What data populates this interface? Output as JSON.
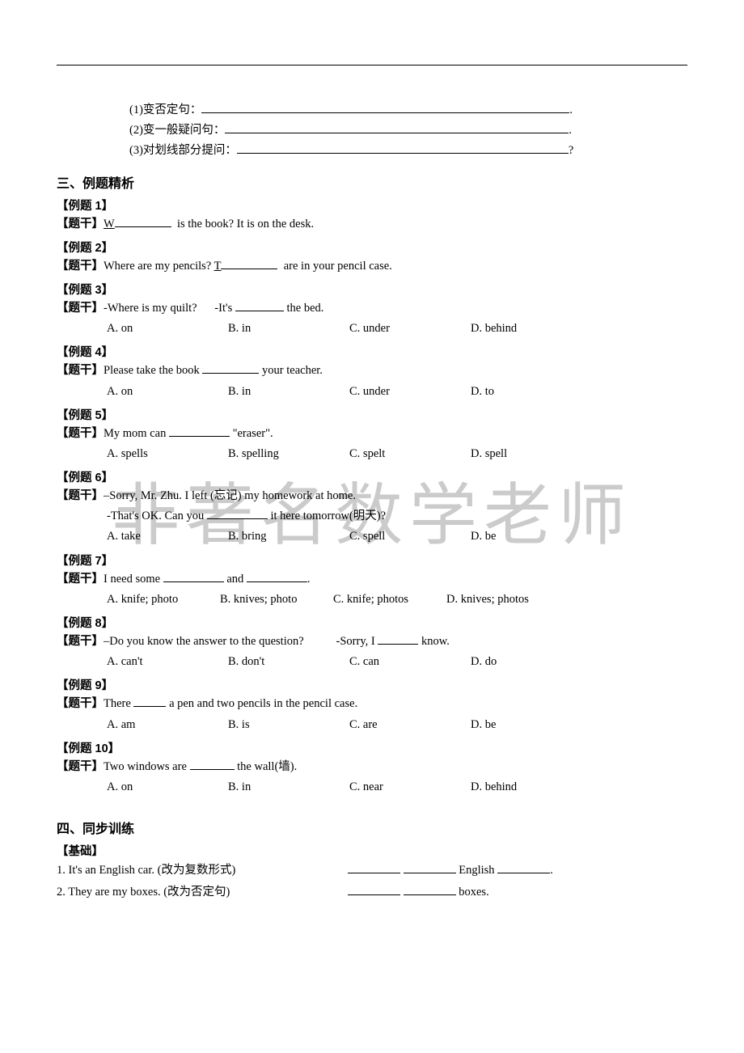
{
  "colors": {
    "text": "#000000",
    "bg": "#ffffff",
    "watermark": "#999999"
  },
  "watermark_text": "非著名数学老师",
  "top_exercises": {
    "line1": {
      "prefix": "(1)变否定句：",
      "terminator": "."
    },
    "line2": {
      "prefix": "(2)变一般疑问句：",
      "terminator": "."
    },
    "line3": {
      "prefix": "(3)对划线部分提问：",
      "terminator": "?"
    }
  },
  "section3_title": "三、例题精析",
  "examples": [
    {
      "label": "【例题 1】",
      "stem_prefix": "【题干】",
      "stem_html": [
        {
          "t": "u",
          "v": "W"
        },
        {
          "t": "blank",
          "w": 70
        },
        {
          "t": "txt",
          "v": "  is the book? It is on the desk."
        }
      ]
    },
    {
      "label": "【例题 2】",
      "stem_prefix": "【题干】",
      "stem_html": [
        {
          "t": "txt",
          "v": "Where are my pencils? "
        },
        {
          "t": "u",
          "v": "T"
        },
        {
          "t": "blank",
          "w": 70
        },
        {
          "t": "txt",
          "v": "  are in your pencil case."
        }
      ]
    },
    {
      "label": "【例题 3】",
      "stem_prefix": "【题干】",
      "stem_html": [
        {
          "t": "txt",
          "v": "-Where is my quilt?      -It's "
        },
        {
          "t": "blank",
          "w": 60
        },
        {
          "t": "txt",
          "v": " the bed."
        }
      ],
      "opts": [
        "A. on",
        "B. in",
        "C. under",
        "D. behind"
      ]
    },
    {
      "label": "【例题 4】",
      "stem_prefix": "【题干】",
      "stem_html": [
        {
          "t": "txt",
          "v": "Please take the book "
        },
        {
          "t": "blank",
          "w": 70
        },
        {
          "t": "txt",
          "v": " your teacher."
        }
      ],
      "opts": [
        "A. on",
        "B. in",
        "C. under",
        "D. to"
      ]
    },
    {
      "label": "【例题 5】",
      "stem_prefix": "【题干】",
      "stem_html": [
        {
          "t": "txt",
          "v": "My mom can "
        },
        {
          "t": "blank",
          "w": 75
        },
        {
          "t": "txt",
          "v": " \"eraser\"."
        }
      ],
      "opts": [
        "A. spells",
        "B. spelling",
        "C. spelt",
        "D. spell"
      ]
    },
    {
      "label": "【例题 6】",
      "stem_prefix": "【题干】",
      "stem_html": [
        {
          "t": "txt",
          "v": "–Sorry, Mr. Zhu. I left (忘记) my homework at home."
        }
      ],
      "stem2_html": [
        {
          "t": "txt",
          "v": "-That's OK. Can you "
        },
        {
          "t": "blank",
          "w": 75
        },
        {
          "t": "txt",
          "v": " it here tomorrow(明天)?"
        }
      ],
      "opts": [
        "A. take",
        "B. bring",
        "C. spell",
        "D. be"
      ]
    },
    {
      "label": "【例题 7】",
      "stem_prefix": "【题干】",
      "stem_html": [
        {
          "t": "txt",
          "v": "I need some "
        },
        {
          "t": "blank",
          "w": 75
        },
        {
          "t": "txt",
          "v": " and "
        },
        {
          "t": "blank",
          "w": 75
        },
        {
          "t": "txt",
          "v": "."
        }
      ],
      "opts": [
        "A. knife; photo",
        "B. knives; photo",
        "C. knife; photos",
        "D. knives; photos"
      ]
    },
    {
      "label": "【例题 8】",
      "stem_prefix": "【题干】",
      "stem_html": [
        {
          "t": "txt",
          "v": "–Do you know the answer to the question?           -Sorry, I "
        },
        {
          "t": "blank",
          "w": 50
        },
        {
          "t": "txt",
          "v": " know."
        }
      ],
      "opts": [
        "A. can't",
        "B. don't",
        "C. can",
        "D. do"
      ]
    },
    {
      "label": "【例题 9】",
      "stem_prefix": "【题干】",
      "stem_html": [
        {
          "t": "txt",
          "v": "There "
        },
        {
          "t": "blank",
          "w": 40
        },
        {
          "t": "txt",
          "v": " a pen and two pencils in the pencil case."
        }
      ],
      "opts": [
        "A. am",
        "B. is",
        "C. are",
        "D. be"
      ]
    },
    {
      "label": "【例题 10】",
      "stem_prefix": "【题干】",
      "stem_html": [
        {
          "t": "txt",
          "v": "Two windows are "
        },
        {
          "t": "blank",
          "w": 55
        },
        {
          "t": "txt",
          "v": " the wall(墙)."
        }
      ],
      "opts": [
        "A. on",
        "B. in",
        "C. near",
        "D. behind"
      ]
    }
  ],
  "section4_title": "四、同步训练",
  "sync_label": "【基础】",
  "sync_items": [
    {
      "left": "1. It's an English car. (改为复数形式)",
      "right_parts": [
        {
          "t": "blank",
          "w": 65
        },
        {
          "t": "txt",
          "v": " "
        },
        {
          "t": "blank",
          "w": 65
        },
        {
          "t": "txt",
          "v": " English "
        },
        {
          "t": "blank",
          "w": 65
        },
        {
          "t": "txt",
          "v": "."
        }
      ]
    },
    {
      "left": "2. They are my boxes. (改为否定句)",
      "right_parts": [
        {
          "t": "blank",
          "w": 65
        },
        {
          "t": "txt",
          "v": " "
        },
        {
          "t": "blank",
          "w": 65
        },
        {
          "t": "txt",
          "v": " boxes."
        }
      ]
    }
  ]
}
